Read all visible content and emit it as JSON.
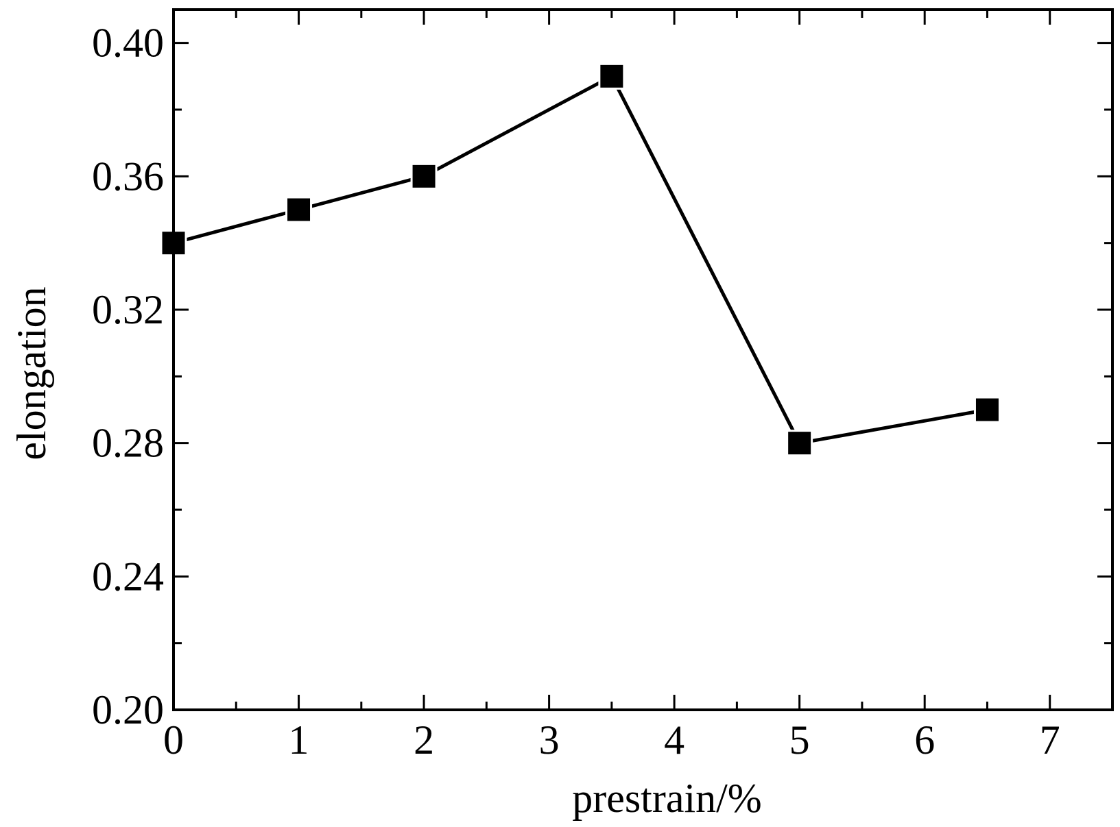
{
  "chart_data": {
    "type": "line",
    "xlabel": "prestrain/%",
    "ylabel": "elongation",
    "xlim": [
      0,
      7.5
    ],
    "ylim": [
      0.2,
      0.41
    ],
    "x_ticks": [
      "0",
      "1",
      "2",
      "3",
      "4",
      "5",
      "6",
      "7"
    ],
    "y_ticks": [
      "0.20",
      "0.24",
      "0.28",
      "0.32",
      "0.36",
      "0.40"
    ],
    "grid": false,
    "marker": "square",
    "line_color": "#000000",
    "x": [
      0,
      1,
      2,
      3.5,
      5,
      6.5
    ],
    "series": [
      {
        "values": [
          0.34,
          0.35,
          0.36,
          0.39,
          0.28,
          0.29
        ]
      }
    ]
  }
}
